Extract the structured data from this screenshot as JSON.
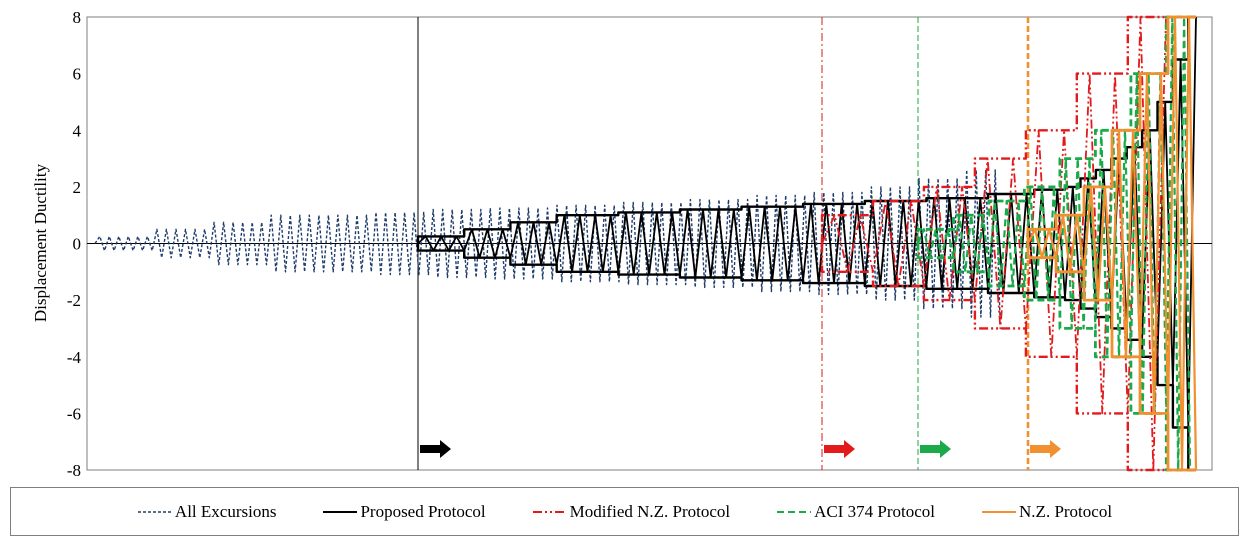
{
  "chart_data": {
    "type": "line",
    "title": "",
    "xlabel": "",
    "ylabel": "Displacement Ductility",
    "ylim": [
      -8,
      8
    ],
    "yticks": [
      "8",
      "6",
      "4",
      "2",
      "0",
      "-2",
      "-4",
      "-6",
      "-8"
    ],
    "grid": false,
    "legend_position": "bottom",
    "series": [
      {
        "name": "All Excursions",
        "color": "#1f3d6b",
        "style": "dotted",
        "stages": [
          {
            "cycles": 6,
            "amplitude": 0.25
          },
          {
            "cycles": 6,
            "amplitude": 0.5
          },
          {
            "cycles": 6,
            "amplitude": 0.75
          },
          {
            "cycles": 11,
            "amplitude": 1.0
          },
          {
            "cycles": 6,
            "amplitude": 1.1
          },
          {
            "cycles": 6,
            "amplitude": 1.2
          },
          {
            "cycles": 7,
            "amplitude": 1.25
          },
          {
            "cycles": 7,
            "amplitude": 1.35
          },
          {
            "cycles": 7,
            "amplitude": 1.45
          },
          {
            "cycles": 7,
            "amplitude": 1.55
          },
          {
            "cycles": 6,
            "amplitude": 1.7
          },
          {
            "cycles": 6,
            "amplitude": 1.8
          },
          {
            "cycles": 5,
            "amplitude": 2.0
          },
          {
            "cycles": 5,
            "amplitude": 2.3
          },
          {
            "cycles": 4,
            "amplitude": 2.6
          }
        ]
      },
      {
        "name": "Proposed Protocol",
        "color": "#000000",
        "style": "solid",
        "stages": [
          {
            "cycles": 3,
            "amplitude": 0.25
          },
          {
            "cycles": 3,
            "amplitude": 0.5
          },
          {
            "cycles": 3,
            "amplitude": 0.75
          },
          {
            "cycles": 4,
            "amplitude": 1.0
          },
          {
            "cycles": 4,
            "amplitude": 1.1
          },
          {
            "cycles": 4,
            "amplitude": 1.2
          },
          {
            "cycles": 4,
            "amplitude": 1.3
          },
          {
            "cycles": 4,
            "amplitude": 1.4
          },
          {
            "cycles": 4,
            "amplitude": 1.5
          },
          {
            "cycles": 4,
            "amplitude": 1.6
          },
          {
            "cycles": 3,
            "amplitude": 1.75
          },
          {
            "cycles": 2,
            "amplitude": 1.9
          },
          {
            "cycles": 1,
            "amplitude": 2.0
          },
          {
            "cycles": 1,
            "amplitude": 2.3
          },
          {
            "cycles": 1,
            "amplitude": 2.6
          },
          {
            "cycles": 1,
            "amplitude": 3.0
          },
          {
            "cycles": 1,
            "amplitude": 3.4
          },
          {
            "cycles": 1,
            "amplitude": 4.0
          },
          {
            "cycles": 1,
            "amplitude": 5.0
          },
          {
            "cycles": 1,
            "amplitude": 6.5
          },
          {
            "cycles": 0.5,
            "amplitude": 8.0
          }
        ]
      },
      {
        "name": "Modified N.Z. Protocol",
        "color": "#e31a1c",
        "style": "dashdotdot",
        "stages": [
          {
            "cycles": 2,
            "amplitude": 1.0
          },
          {
            "cycles": 2,
            "amplitude": 1.5
          },
          {
            "cycles": 2,
            "amplitude": 2.0
          },
          {
            "cycles": 2,
            "amplitude": 3.0
          },
          {
            "cycles": 2,
            "amplitude": 4.0
          },
          {
            "cycles": 2,
            "amplitude": 6.0
          },
          {
            "cycles": 1.5,
            "amplitude": 8.0
          }
        ]
      },
      {
        "name": "ACI 374 Protocol",
        "color": "#1aaa4a",
        "style": "dashed",
        "stages": [
          {
            "cycles": 3,
            "amplitude": 0.5
          },
          {
            "cycles": 3,
            "amplitude": 1.0
          },
          {
            "cycles": 3,
            "amplitude": 1.5
          },
          {
            "cycles": 3,
            "amplitude": 2.0
          },
          {
            "cycles": 3,
            "amplitude": 3.0
          },
          {
            "cycles": 3,
            "amplitude": 4.0
          },
          {
            "cycles": 3,
            "amplitude": 6.0
          },
          {
            "cycles": 2,
            "amplitude": 8.0
          }
        ]
      },
      {
        "name": "N.Z. Protocol",
        "color": "#f0902e",
        "style": "solid",
        "stages": [
          {
            "cycles": 2,
            "amplitude": 0.5
          },
          {
            "cycles": 2,
            "amplitude": 1.0
          },
          {
            "cycles": 2,
            "amplitude": 2.0
          },
          {
            "cycles": 2,
            "amplitude": 4.0
          },
          {
            "cycles": 2,
            "amplitude": 6.0
          },
          {
            "cycles": 2,
            "amplitude": 8.0
          }
        ]
      }
    ]
  }
}
